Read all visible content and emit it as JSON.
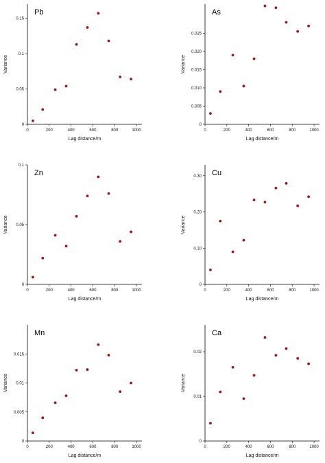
{
  "chart_data": [
    {
      "type": "scatter",
      "title": "Pb",
      "xlabel": "Lag distance/m",
      "ylabel": "Variance",
      "xlim": [
        0,
        1050
      ],
      "ylim": [
        0,
        0.17
      ],
      "xticks": [
        0,
        200,
        400,
        600,
        800,
        1000
      ],
      "xtick_labels": [
        "0",
        "200",
        "400",
        "600",
        "800",
        "1000"
      ],
      "yticks": [
        0,
        0.05,
        0.1,
        0.15
      ],
      "ytick_labels": [
        "0",
        "0.05",
        "0.1",
        "0.15"
      ],
      "color": "#a01414",
      "grid": false,
      "x": [
        50,
        140,
        255,
        355,
        450,
        550,
        650,
        745,
        850,
        950
      ],
      "y": [
        0.005,
        0.021,
        0.049,
        0.054,
        0.113,
        0.137,
        0.157,
        0.118,
        0.067,
        0.064
      ]
    },
    {
      "type": "scatter",
      "title": "As",
      "xlabel": "Lag distance/m",
      "ylabel": "Variance",
      "xlim": [
        0,
        1050
      ],
      "ylim": [
        0,
        0.033
      ],
      "xticks": [
        0,
        200,
        400,
        600,
        800,
        1000
      ],
      "xtick_labels": [
        "0",
        "200",
        "400",
        "600",
        "800",
        "1000"
      ],
      "yticks": [
        0,
        0.005,
        0.01,
        0.015,
        0.02,
        0.025
      ],
      "ytick_labels": [
        "0",
        "0.005",
        "0.010",
        "0.015",
        "0.020",
        "0.025"
      ],
      "color": "#a01414",
      "grid": false,
      "x": [
        50,
        140,
        255,
        355,
        450,
        550,
        650,
        745,
        850,
        950
      ],
      "y": [
        0.003,
        0.009,
        0.019,
        0.0105,
        0.018,
        0.0325,
        0.032,
        0.028,
        0.0255,
        0.027
      ]
    },
    {
      "type": "scatter",
      "title": "Zn",
      "xlabel": "Lag distance/m",
      "ylabel": "Variance",
      "xlim": [
        0,
        1050
      ],
      "ylim": [
        0,
        0.1
      ],
      "xticks": [
        0,
        200,
        400,
        600,
        800,
        1000
      ],
      "xtick_labels": [
        "0",
        "200",
        "400",
        "600",
        "800",
        "1000"
      ],
      "yticks": [
        0,
        0.05,
        0.1
      ],
      "ytick_labels": [
        "0",
        "0.05",
        "0.1"
      ],
      "color": "#a01414",
      "grid": false,
      "x": [
        50,
        140,
        255,
        355,
        450,
        550,
        650,
        745,
        850,
        950
      ],
      "y": [
        0.006,
        0.022,
        0.041,
        0.032,
        0.057,
        0.074,
        0.09,
        0.076,
        0.036,
        0.044
      ]
    },
    {
      "type": "scatter",
      "title": "Cu",
      "xlabel": "Lag distance/m",
      "ylabel": "Variance",
      "xlim": [
        0,
        1050
      ],
      "ylim": [
        0,
        0.33
      ],
      "xticks": [
        0,
        200,
        400,
        600,
        800,
        1000
      ],
      "xtick_labels": [
        "0",
        "200",
        "400",
        "600",
        "800",
        "1000"
      ],
      "yticks": [
        0,
        0.1,
        0.2,
        0.3
      ],
      "ytick_labels": [
        "0",
        "0.10",
        "0.20",
        "0.30"
      ],
      "color": "#a01414",
      "grid": false,
      "x": [
        50,
        140,
        255,
        355,
        450,
        550,
        650,
        745,
        850,
        950
      ],
      "y": [
        0.04,
        0.175,
        0.09,
        0.122,
        0.233,
        0.227,
        0.266,
        0.279,
        0.217,
        0.242
      ]
    },
    {
      "type": "scatter",
      "title": "Mn",
      "xlabel": "Lag distance/m",
      "ylabel": "Variance",
      "xlim": [
        0,
        1050
      ],
      "ylim": [
        0,
        0.02
      ],
      "xticks": [
        0,
        200,
        400,
        600,
        800,
        1000
      ],
      "xtick_labels": [
        "0",
        "200",
        "400",
        "600",
        "800",
        "1000"
      ],
      "yticks": [
        0,
        0.005,
        0.01,
        0.015
      ],
      "ytick_labels": [
        "0",
        "0.005",
        "0.01",
        "0.015"
      ],
      "color": "#a01414",
      "grid": false,
      "x": [
        50,
        140,
        255,
        355,
        450,
        550,
        650,
        745,
        850,
        950
      ],
      "y": [
        0.0014,
        0.004,
        0.0066,
        0.0078,
        0.0122,
        0.0123,
        0.0166,
        0.0148,
        0.0085,
        0.01
      ]
    },
    {
      "type": "scatter",
      "title": "Ca",
      "xlabel": "Lag distance/m",
      "ylabel": "Variance",
      "xlim": [
        0,
        1050
      ],
      "ylim": [
        0,
        0.026
      ],
      "xticks": [
        0,
        200,
        400,
        600,
        800,
        1000
      ],
      "xtick_labels": [
        "0",
        "200",
        "400",
        "600",
        "800",
        "1000"
      ],
      "yticks": [
        0,
        0.01,
        0.02
      ],
      "ytick_labels": [
        "0",
        "0.01",
        "0.02"
      ],
      "color": "#a01414",
      "grid": false,
      "x": [
        50,
        140,
        255,
        355,
        450,
        550,
        650,
        745,
        850,
        950
      ],
      "y": [
        0.004,
        0.011,
        0.0165,
        0.0095,
        0.0147,
        0.0232,
        0.0192,
        0.0207,
        0.0185,
        0.0173
      ]
    }
  ]
}
